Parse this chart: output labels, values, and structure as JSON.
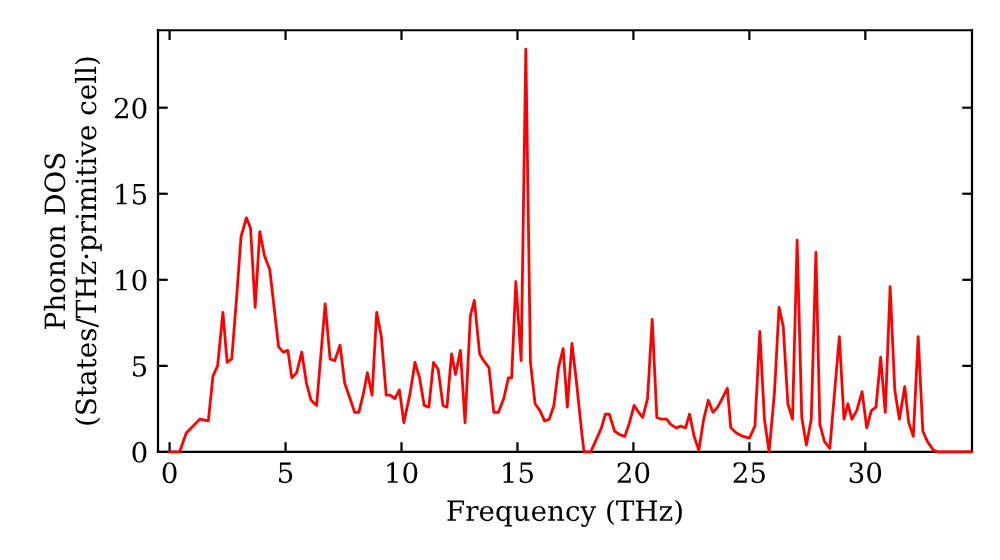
{
  "chart_data": {
    "type": "line",
    "xlabel": "Frequency (THz)",
    "ylabel": "Phonon DOS\n(States/THz·primitive cell)",
    "xlim": [
      -0.5,
      34.6
    ],
    "ylim": [
      0,
      24.5
    ],
    "xticks": [
      0,
      5,
      10,
      15,
      20,
      25,
      30
    ],
    "yticks": [
      0,
      5,
      10,
      15,
      20
    ],
    "grid": false,
    "legend": false,
    "series": [
      {
        "color": "#ff0000",
        "x": [
          0,
          0.43,
          0.72,
          1.3,
          1.67,
          1.87,
          2.07,
          2.3,
          2.48,
          2.68,
          2.88,
          3.08,
          3.31,
          3.49,
          3.69,
          3.89,
          4.09,
          4.32,
          4.7,
          4.9,
          5.1,
          5.27,
          5.48,
          5.7,
          5.9,
          6.1,
          6.34,
          6.71,
          6.92,
          7.12,
          7.35,
          7.55,
          7.78,
          7.98,
          8.16,
          8.36,
          8.53,
          8.73,
          8.93,
          9.13,
          9.34,
          9.51,
          9.71,
          9.91,
          10.1,
          10.37,
          10.58,
          10.78,
          10.98,
          11.18,
          11.38,
          11.58,
          11.79,
          11.96,
          12.16,
          12.33,
          12.54,
          12.74,
          12.97,
          13.14,
          13.37,
          13.54,
          13.77,
          13.98,
          14.18,
          14.41,
          14.61,
          14.75,
          14.93,
          15.16,
          15.36,
          15.56,
          15.76,
          15.97,
          16.17,
          16.37,
          16.57,
          16.77,
          16.97,
          17.15,
          17.35,
          17.55,
          17.75,
          17.87,
          18.16,
          18.39,
          18.62,
          18.79,
          18.96,
          19.19,
          19.42,
          19.63,
          19.83,
          20.03,
          20.23,
          20.4,
          20.61,
          20.81,
          21.01,
          21.21,
          21.43,
          21.61,
          21.84,
          22.04,
          22.25,
          22.42,
          22.62,
          22.82,
          23.03,
          23.23,
          23.43,
          23.63,
          23.83,
          24.05,
          24.2,
          24.44,
          24.73,
          25.0,
          25.24,
          25.45,
          25.65,
          25.85,
          26.08,
          26.28,
          26.46,
          26.66,
          26.86,
          27.06,
          27.26,
          27.46,
          27.67,
          27.87,
          28.04,
          28.24,
          28.47,
          28.67,
          28.88,
          29.08,
          29.25,
          29.42,
          29.63,
          29.86,
          30.06,
          30.26,
          30.46,
          30.66,
          30.86,
          31.07,
          31.27,
          31.47,
          31.7,
          31.87,
          32.07,
          32.28,
          32.48,
          32.68,
          32.94,
          33.14,
          34.58
        ],
        "values": [
          0,
          0,
          1.1,
          1.9,
          1.8,
          4.4,
          5.0,
          8.1,
          5.2,
          5.4,
          8.8,
          12.5,
          13.6,
          13.0,
          8.4,
          12.8,
          11.4,
          10.6,
          6.1,
          5.8,
          5.9,
          4.3,
          4.6,
          5.8,
          4.0,
          3.0,
          2.7,
          8.6,
          5.4,
          5.3,
          6.2,
          4.0,
          3.1,
          2.3,
          2.3,
          3.4,
          4.6,
          3.3,
          8.1,
          6.7,
          3.3,
          3.3,
          3.1,
          3.6,
          1.7,
          3.4,
          5.2,
          4.3,
          2.7,
          2.6,
          5.2,
          4.8,
          2.7,
          2.6,
          5.7,
          4.5,
          5.9,
          1.7,
          7.9,
          8.8,
          5.7,
          5.3,
          4.9,
          2.3,
          2.3,
          3.1,
          4.3,
          4.3,
          9.9,
          5.3,
          23.4,
          5.2,
          2.8,
          2.4,
          1.8,
          1.9,
          2.7,
          4.9,
          6.0,
          2.6,
          6.3,
          4.0,
          1.4,
          0,
          0,
          0.7,
          1.4,
          2.2,
          2.2,
          1.2,
          1.0,
          0.9,
          1.7,
          2.7,
          2.3,
          2.0,
          3.1,
          7.7,
          2.0,
          1.9,
          1.9,
          1.6,
          1.4,
          1.5,
          1.4,
          2.2,
          0.9,
          0.1,
          1.9,
          3.0,
          2.3,
          2.6,
          3.1,
          3.7,
          1.4,
          1.1,
          0.9,
          0.8,
          1.5,
          7.0,
          1.9,
          0,
          3.4,
          8.4,
          7.3,
          2.8,
          1.9,
          12.3,
          2.0,
          0.4,
          1.9,
          11.6,
          1.6,
          0.6,
          0.2,
          3.4,
          6.7,
          1.9,
          2.8,
          1.9,
          2.4,
          3.5,
          1.4,
          2.4,
          2.6,
          5.5,
          2.3,
          9.6,
          3.6,
          1.9,
          3.8,
          1.7,
          0.9,
          6.7,
          1.2,
          0.6,
          0.1,
          0,
          0
        ]
      }
    ]
  }
}
